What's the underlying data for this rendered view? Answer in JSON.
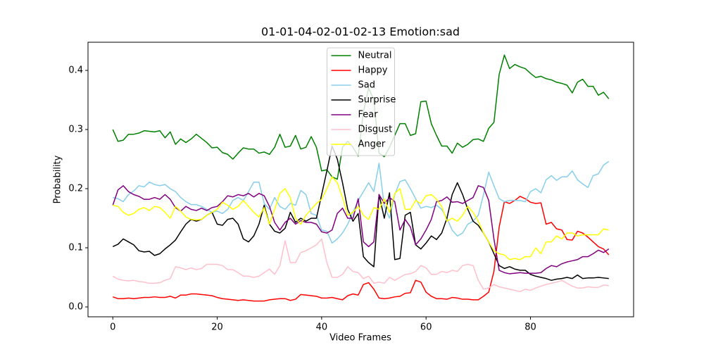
{
  "chart_data": {
    "type": "line",
    "title": "01-01-04-02-01-02-13 Emotion:sad",
    "x_label": "Video Frames",
    "y_label": "Probability",
    "x": [
      0,
      1,
      2,
      3,
      4,
      5,
      6,
      7,
      8,
      9,
      10,
      11,
      12,
      13,
      14,
      15,
      16,
      17,
      18,
      19,
      20,
      21,
      22,
      23,
      24,
      25,
      26,
      27,
      28,
      29,
      30,
      31,
      32,
      33,
      34,
      35,
      36,
      37,
      38,
      39,
      40,
      41,
      42,
      43,
      44,
      45,
      46,
      47,
      48,
      49,
      50,
      51,
      52,
      53,
      54,
      55,
      56,
      57,
      58,
      59,
      60,
      61,
      62,
      63,
      64,
      65,
      66,
      67,
      68,
      69,
      70,
      71,
      72,
      73,
      74,
      75,
      76,
      77,
      78,
      79,
      80,
      81,
      82,
      83,
      84,
      85,
      86,
      87,
      88,
      89,
      90,
      91,
      92,
      93,
      94,
      95
    ],
    "xlim": [
      -4.75,
      99.75
    ],
    "xticks": [
      0,
      20,
      40,
      60,
      80
    ],
    "ylim": [
      -0.0167,
      0.4476
    ],
    "yticks": [
      {
        "value": 0,
        "label": "0.0"
      },
      0.1,
      0.2,
      0.3,
      0.4
    ],
    "legend": "upper center",
    "series": [
      {
        "name": "Neutral",
        "color": "green",
        "values": [
          0.3,
          0.28,
          0.282,
          0.292,
          0.292,
          0.294,
          0.298,
          0.297,
          0.296,
          0.298,
          0.286,
          0.296,
          0.275,
          0.284,
          0.278,
          0.284,
          0.292,
          0.285,
          0.278,
          0.269,
          0.27,
          0.261,
          0.258,
          0.25,
          0.26,
          0.269,
          0.267,
          0.267,
          0.26,
          0.262,
          0.258,
          0.27,
          0.292,
          0.27,
          0.272,
          0.29,
          0.267,
          0.27,
          0.288,
          0.27,
          0.23,
          0.232,
          0.22,
          0.216,
          0.27,
          0.28,
          0.27,
          0.255,
          0.33,
          0.37,
          0.35,
          0.26,
          0.254,
          0.27,
          0.29,
          0.31,
          0.31,
          0.29,
          0.293,
          0.347,
          0.348,
          0.31,
          0.29,
          0.272,
          0.272,
          0.26,
          0.277,
          0.27,
          0.275,
          0.283,
          0.284,
          0.28,
          0.302,
          0.312,
          0.393,
          0.426,
          0.403,
          0.41,
          0.406,
          0.403,
          0.395,
          0.388,
          0.39,
          0.386,
          0.384,
          0.38,
          0.378,
          0.375,
          0.362,
          0.38,
          0.385,
          0.373,
          0.373,
          0.358,
          0.363,
          0.352
        ]
      },
      {
        "name": "Happy",
        "color": "red",
        "values": [
          0.017,
          0.014,
          0.014,
          0.015,
          0.014,
          0.015,
          0.016,
          0.016,
          0.017,
          0.016,
          0.016,
          0.018,
          0.015,
          0.02,
          0.02,
          0.022,
          0.022,
          0.021,
          0.02,
          0.019,
          0.016,
          0.014,
          0.013,
          0.012,
          0.011,
          0.012,
          0.011,
          0.01,
          0.01,
          0.01,
          0.012,
          0.013,
          0.014,
          0.014,
          0.011,
          0.013,
          0.021,
          0.02,
          0.019,
          0.018,
          0.015,
          0.015,
          0.016,
          0.014,
          0.012,
          0.019,
          0.022,
          0.02,
          0.038,
          0.041,
          0.03,
          0.015,
          0.014,
          0.015,
          0.017,
          0.018,
          0.023,
          0.024,
          0.045,
          0.042,
          0.025,
          0.018,
          0.014,
          0.014,
          0.013,
          0.016,
          0.015,
          0.013,
          0.013,
          0.012,
          0.012,
          0.018,
          0.025,
          0.06,
          0.135,
          0.178,
          0.175,
          0.18,
          0.187,
          0.183,
          0.177,
          0.175,
          0.176,
          0.14,
          0.143,
          0.132,
          0.13,
          0.114,
          0.113,
          0.128,
          0.125,
          0.118,
          0.11,
          0.102,
          0.098,
          0.088
        ]
      },
      {
        "name": "Sad",
        "color": "skyblue",
        "values": [
          0.185,
          0.183,
          0.178,
          0.19,
          0.196,
          0.205,
          0.203,
          0.211,
          0.207,
          0.205,
          0.207,
          0.2,
          0.195,
          0.185,
          0.178,
          0.173,
          0.173,
          0.17,
          0.165,
          0.16,
          0.162,
          0.158,
          0.165,
          0.18,
          0.185,
          0.18,
          0.195,
          0.211,
          0.211,
          0.175,
          0.165,
          0.185,
          0.17,
          0.165,
          0.175,
          0.172,
          0.197,
          0.19,
          0.158,
          0.155,
          0.13,
          0.128,
          0.108,
          0.115,
          0.125,
          0.14,
          0.16,
          0.18,
          0.195,
          0.21,
          0.195,
          0.243,
          0.17,
          0.15,
          0.19,
          0.212,
          0.215,
          0.2,
          0.183,
          0.167,
          0.17,
          0.168,
          0.172,
          0.165,
          0.15,
          0.13,
          0.12,
          0.125,
          0.14,
          0.145,
          0.155,
          0.19,
          0.228,
          0.205,
          0.183,
          0.178,
          0.18,
          0.18,
          0.18,
          0.178,
          0.195,
          0.2,
          0.193,
          0.215,
          0.222,
          0.214,
          0.22,
          0.22,
          0.23,
          0.215,
          0.208,
          0.202,
          0.222,
          0.225,
          0.24,
          0.246
        ]
      },
      {
        "name": "Surprise",
        "color": "black",
        "values": [
          0.102,
          0.106,
          0.115,
          0.11,
          0.105,
          0.095,
          0.093,
          0.094,
          0.087,
          0.09,
          0.098,
          0.105,
          0.113,
          0.127,
          0.14,
          0.148,
          0.145,
          0.148,
          0.155,
          0.16,
          0.14,
          0.138,
          0.148,
          0.15,
          0.14,
          0.115,
          0.11,
          0.12,
          0.14,
          0.172,
          0.14,
          0.128,
          0.125,
          0.133,
          0.16,
          0.143,
          0.15,
          0.145,
          0.15,
          0.15,
          0.19,
          0.23,
          0.272,
          0.25,
          0.21,
          0.165,
          0.145,
          0.158,
          0.085,
          0.075,
          0.068,
          0.19,
          0.15,
          0.193,
          0.08,
          0.082,
          0.155,
          0.16,
          0.105,
          0.098,
          0.108,
          0.12,
          0.114,
          0.125,
          0.15,
          0.19,
          0.21,
          0.19,
          0.165,
          0.145,
          0.138,
          0.125,
          0.11,
          0.09,
          0.07,
          0.065,
          0.068,
          0.064,
          0.062,
          0.062,
          0.055,
          0.052,
          0.05,
          0.048,
          0.045,
          0.047,
          0.048,
          0.05,
          0.048,
          0.054,
          0.048,
          0.049,
          0.049,
          0.05,
          0.049,
          0.048
        ]
      },
      {
        "name": "Fear",
        "color": "purple",
        "values": [
          0.172,
          0.198,
          0.205,
          0.195,
          0.19,
          0.187,
          0.182,
          0.182,
          0.185,
          0.182,
          0.19,
          0.182,
          0.168,
          0.162,
          0.17,
          0.165,
          0.163,
          0.167,
          0.163,
          0.168,
          0.17,
          0.178,
          0.188,
          0.186,
          0.19,
          0.188,
          0.192,
          0.186,
          0.192,
          0.188,
          0.17,
          0.143,
          0.13,
          0.143,
          0.15,
          0.14,
          0.146,
          0.143,
          0.143,
          0.14,
          0.127,
          0.125,
          0.13,
          0.158,
          0.167,
          0.15,
          0.15,
          0.183,
          0.11,
          0.102,
          0.11,
          0.19,
          0.175,
          0.185,
          0.178,
          0.13,
          0.148,
          0.135,
          0.105,
          0.115,
          0.13,
          0.148,
          0.178,
          0.18,
          0.186,
          0.177,
          0.178,
          0.175,
          0.18,
          0.185,
          0.205,
          0.202,
          0.18,
          0.115,
          0.062,
          0.058,
          0.056,
          0.057,
          0.058,
          0.057,
          0.057,
          0.057,
          0.058,
          0.065,
          0.07,
          0.068,
          0.073,
          0.076,
          0.078,
          0.08,
          0.085,
          0.085,
          0.09,
          0.096,
          0.092,
          0.098
        ]
      },
      {
        "name": "Disgust",
        "color": "pink",
        "values": [
          0.052,
          0.047,
          0.045,
          0.044,
          0.045,
          0.043,
          0.042,
          0.04,
          0.04,
          0.041,
          0.045,
          0.048,
          0.068,
          0.066,
          0.063,
          0.066,
          0.063,
          0.065,
          0.072,
          0.072,
          0.072,
          0.07,
          0.063,
          0.063,
          0.058,
          0.052,
          0.052,
          0.05,
          0.052,
          0.058,
          0.064,
          0.055,
          0.07,
          0.112,
          0.075,
          0.075,
          0.092,
          0.095,
          0.1,
          0.105,
          0.115,
          0.075,
          0.05,
          0.05,
          0.055,
          0.068,
          0.06,
          0.058,
          0.048,
          0.052,
          0.04,
          0.042,
          0.04,
          0.05,
          0.045,
          0.05,
          0.055,
          0.056,
          0.06,
          0.07,
          0.066,
          0.055,
          0.055,
          0.06,
          0.058,
          0.062,
          0.06,
          0.07,
          0.072,
          0.07,
          0.045,
          0.03,
          0.032,
          0.038,
          0.034,
          0.032,
          0.03,
          0.028,
          0.026,
          0.03,
          0.028,
          0.032,
          0.035,
          0.038,
          0.04,
          0.042,
          0.045,
          0.04,
          0.035,
          0.032,
          0.032,
          0.034,
          0.033,
          0.033,
          0.037,
          0.036
        ]
      },
      {
        "name": "Anger",
        "color": "yellow",
        "values": [
          0.172,
          0.17,
          0.16,
          0.155,
          0.158,
          0.165,
          0.168,
          0.163,
          0.17,
          0.168,
          0.16,
          0.15,
          0.17,
          0.162,
          0.152,
          0.148,
          0.147,
          0.148,
          0.155,
          0.16,
          0.165,
          0.177,
          0.172,
          0.165,
          0.17,
          0.18,
          0.17,
          0.16,
          0.152,
          0.168,
          0.14,
          0.165,
          0.192,
          0.2,
          0.185,
          0.15,
          0.14,
          0.155,
          0.165,
          0.175,
          0.182,
          0.2,
          0.22,
          0.21,
          0.185,
          0.155,
          0.16,
          0.17,
          0.155,
          0.148,
          0.168,
          0.165,
          0.183,
          0.16,
          0.192,
          0.2,
          0.165,
          0.165,
          0.18,
          0.175,
          0.188,
          0.19,
          0.182,
          0.17,
          0.145,
          0.15,
          0.145,
          0.155,
          0.17,
          0.16,
          0.145,
          0.125,
          0.11,
          0.095,
          0.09,
          0.088,
          0.08,
          0.082,
          0.08,
          0.085,
          0.085,
          0.1,
          0.09,
          0.11,
          0.11,
          0.12,
          0.115,
          0.125,
          0.125,
          0.12,
          0.122,
          0.122,
          0.122,
          0.122,
          0.132,
          0.13
        ]
      }
    ]
  }
}
